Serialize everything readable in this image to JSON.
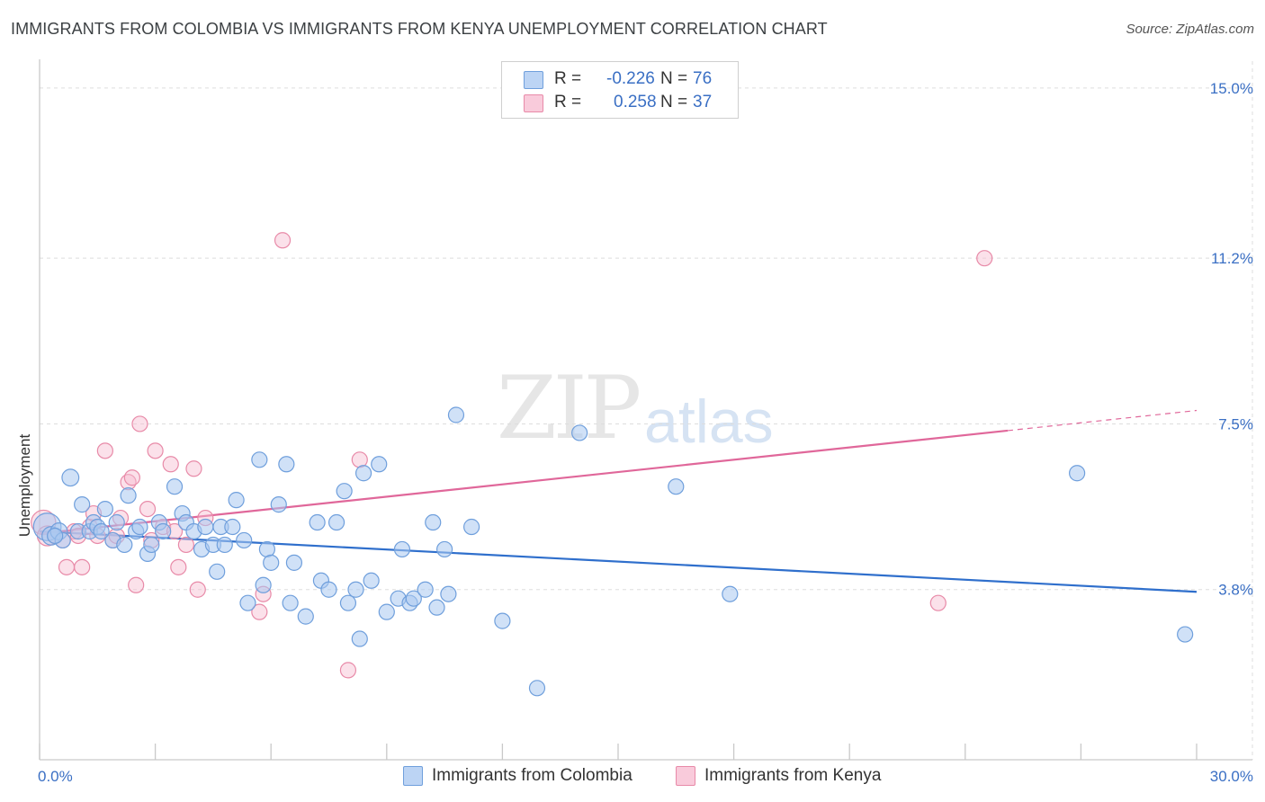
{
  "title": "IMMIGRANTS FROM COLOMBIA VS IMMIGRANTS FROM KENYA UNEMPLOYMENT CORRELATION CHART",
  "source": "Source: ZipAtlas.com",
  "watermark_main": "ZIP",
  "watermark_sub": "atlas",
  "legend": {
    "rows": [
      {
        "label": "R =",
        "r": "-0.226",
        "n_label": "N =",
        "n": "76"
      },
      {
        "label": "R =",
        "r": "0.258",
        "n_label": "N =",
        "n": "37"
      }
    ]
  },
  "bottom_legend": [
    "Immigrants from Colombia",
    "Immigrants from Kenya"
  ],
  "colors": {
    "blue_fill": "#a9c8f0",
    "blue_stroke": "#6f9fdc",
    "blue_line": "#2f6fcc",
    "pink_fill": "#f6bcd0",
    "pink_stroke": "#e88aa8",
    "pink_line": "#e0679a",
    "axis_text": "#3a6fc4",
    "grid": "#dddddd"
  },
  "chart_data": {
    "type": "scatter",
    "title": "IMMIGRANTS FROM COLOMBIA VS IMMIGRANTS FROM KENYA UNEMPLOYMENT CORRELATION CHART",
    "xlabel": "",
    "ylabel": "Unemployment",
    "xlim": [
      0,
      30
    ],
    "ylim": [
      0,
      15.4
    ],
    "x_tick_labels": [
      "0.0%",
      "30.0%"
    ],
    "y_ticks": [
      3.8,
      7.5,
      11.2,
      15.0
    ],
    "y_tick_labels": [
      "3.8%",
      "7.5%",
      "11.2%",
      "15.0%"
    ],
    "series": [
      {
        "name": "Immigrants from Colombia",
        "R": -0.226,
        "N": 76,
        "trend": {
          "x0": 0,
          "y0": 5.1,
          "x1": 30,
          "y1": 3.75
        },
        "points": [
          [
            0.2,
            5.2,
            1.8
          ],
          [
            0.3,
            5.0,
            1.2
          ],
          [
            0.5,
            5.1,
            1.1
          ],
          [
            0.6,
            4.9,
            1
          ],
          [
            0.8,
            6.3,
            1.1
          ],
          [
            1.1,
            5.7,
            1
          ],
          [
            1.0,
            5.1,
            1
          ],
          [
            1.3,
            5.1,
            1
          ],
          [
            1.4,
            5.3,
            1
          ],
          [
            1.5,
            5.2,
            1
          ],
          [
            1.7,
            5.6,
            1
          ],
          [
            1.9,
            4.9,
            1
          ],
          [
            2.0,
            5.3,
            1
          ],
          [
            2.2,
            4.8,
            1
          ],
          [
            2.3,
            5.9,
            1
          ],
          [
            2.5,
            5.1,
            1
          ],
          [
            2.6,
            5.2,
            1
          ],
          [
            2.8,
            4.6,
            1
          ],
          [
            2.9,
            4.8,
            1
          ],
          [
            3.1,
            5.3,
            1
          ],
          [
            3.2,
            5.1,
            1
          ],
          [
            3.5,
            6.1,
            1
          ],
          [
            3.7,
            5.5,
            1
          ],
          [
            3.8,
            5.3,
            1
          ],
          [
            4.0,
            5.1,
            1
          ],
          [
            4.2,
            4.7,
            1
          ],
          [
            4.3,
            5.2,
            1
          ],
          [
            4.5,
            4.8,
            1
          ],
          [
            4.6,
            4.2,
            1
          ],
          [
            4.7,
            5.2,
            1
          ],
          [
            4.8,
            4.8,
            1
          ],
          [
            5.0,
            5.2,
            1
          ],
          [
            5.1,
            5.8,
            1
          ],
          [
            5.3,
            4.9,
            1
          ],
          [
            5.4,
            3.5,
            1
          ],
          [
            5.7,
            6.7,
            1
          ],
          [
            5.8,
            3.9,
            1
          ],
          [
            5.9,
            4.7,
            1
          ],
          [
            6.0,
            4.4,
            1
          ],
          [
            6.2,
            5.7,
            1
          ],
          [
            6.4,
            6.6,
            1
          ],
          [
            6.5,
            3.5,
            1
          ],
          [
            6.6,
            4.4,
            1
          ],
          [
            6.9,
            3.2,
            1
          ],
          [
            7.2,
            5.3,
            1
          ],
          [
            7.3,
            4.0,
            1
          ],
          [
            7.5,
            3.8,
            1
          ],
          [
            7.7,
            5.3,
            1
          ],
          [
            7.9,
            6.0,
            1
          ],
          [
            8.0,
            3.5,
            1
          ],
          [
            8.2,
            3.8,
            1
          ],
          [
            8.3,
            2.7,
            1
          ],
          [
            8.4,
            6.4,
            1
          ],
          [
            8.6,
            4.0,
            1
          ],
          [
            8.8,
            6.6,
            1
          ],
          [
            9.0,
            3.3,
            1
          ],
          [
            9.3,
            3.6,
            1
          ],
          [
            9.4,
            4.7,
            1
          ],
          [
            9.6,
            3.5,
            1
          ],
          [
            9.7,
            3.6,
            1
          ],
          [
            10.0,
            3.8,
            1
          ],
          [
            10.2,
            5.3,
            1
          ],
          [
            10.3,
            3.4,
            1
          ],
          [
            10.5,
            4.7,
            1
          ],
          [
            10.6,
            3.7,
            1
          ],
          [
            10.8,
            7.7,
            1
          ],
          [
            11.2,
            5.2,
            1
          ],
          [
            12.0,
            3.1,
            1
          ],
          [
            12.9,
            1.6,
            1
          ],
          [
            14.0,
            7.3,
            1
          ],
          [
            16.5,
            6.1,
            1
          ],
          [
            17.9,
            3.7,
            1
          ],
          [
            26.9,
            6.4,
            1
          ],
          [
            29.7,
            2.8,
            1
          ],
          [
            0.4,
            5.0,
            1
          ],
          [
            1.6,
            5.1,
            1
          ]
        ]
      },
      {
        "name": "Immigrants from Kenya",
        "R": 0.258,
        "N": 37,
        "trend": {
          "x0": 0,
          "y0": 5.05,
          "x1": 25.1,
          "y1": 7.35,
          "dash_x1": 30,
          "dash_y1": 7.8
        },
        "points": [
          [
            0.1,
            5.3,
            1.6
          ],
          [
            0.2,
            5.0,
            1.3
          ],
          [
            0.4,
            5.0,
            1
          ],
          [
            0.6,
            4.9,
            1
          ],
          [
            0.7,
            4.3,
            1
          ],
          [
            0.9,
            5.1,
            1
          ],
          [
            1.1,
            4.3,
            1
          ],
          [
            1.3,
            5.2,
            1
          ],
          [
            1.4,
            5.5,
            1
          ],
          [
            1.5,
            5.0,
            1
          ],
          [
            1.7,
            6.9,
            1
          ],
          [
            1.9,
            4.9,
            1
          ],
          [
            2.1,
            5.4,
            1
          ],
          [
            2.3,
            6.2,
            1
          ],
          [
            2.4,
            6.3,
            1
          ],
          [
            2.5,
            3.9,
            1
          ],
          [
            2.6,
            7.5,
            1
          ],
          [
            2.8,
            5.6,
            1
          ],
          [
            2.9,
            4.9,
            1
          ],
          [
            3.0,
            6.9,
            1
          ],
          [
            3.2,
            5.2,
            1
          ],
          [
            3.4,
            6.6,
            1
          ],
          [
            3.6,
            4.3,
            1
          ],
          [
            3.8,
            4.8,
            1
          ],
          [
            4.0,
            6.5,
            1
          ],
          [
            4.1,
            3.8,
            1
          ],
          [
            4.3,
            5.4,
            1
          ],
          [
            5.7,
            3.3,
            1
          ],
          [
            5.8,
            3.7,
            1
          ],
          [
            6.3,
            11.6,
            1
          ],
          [
            8.0,
            2.0,
            1
          ],
          [
            8.3,
            6.7,
            1
          ],
          [
            23.3,
            3.5,
            1
          ],
          [
            24.5,
            11.2,
            1
          ],
          [
            1.0,
            5.0,
            1
          ],
          [
            2.0,
            5.0,
            1
          ],
          [
            3.5,
            5.1,
            1
          ]
        ]
      }
    ],
    "grid": true,
    "legend_position": "top-center"
  }
}
